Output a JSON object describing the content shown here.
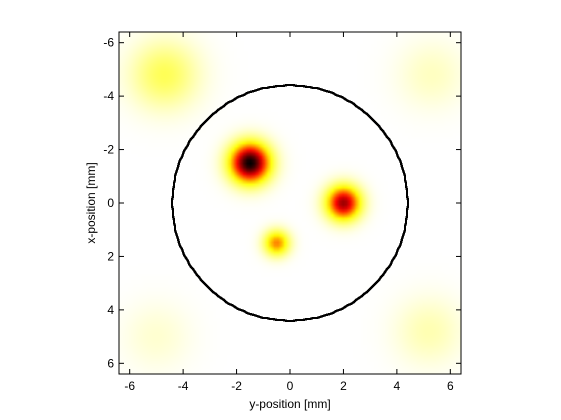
{
  "chart_data": {
    "type": "heatmap",
    "title": "",
    "xlabel": "y-position [mm]",
    "ylabel": "x-position [mm]",
    "xlim": [
      -6.4,
      6.4
    ],
    "ylim": [
      -6.4,
      6.4
    ],
    "y_axis_reversed": true,
    "xticks": [
      -6,
      -4,
      -2,
      0,
      2,
      4,
      6
    ],
    "yticks": [
      -6,
      -4,
      -2,
      0,
      2,
      4,
      6
    ],
    "xtick_labels": [
      "-6",
      "-4",
      "-2",
      "0",
      "2",
      "4",
      "6"
    ],
    "ytick_labels": [
      "-6",
      "-4",
      "-2",
      "0",
      "2",
      "4",
      "6"
    ],
    "grid": false,
    "colormap": "hot (reversed)",
    "colormap_stops": [
      "#ffffff",
      "#ffff00",
      "#ff0000",
      "#000000"
    ],
    "boundary_circle": {
      "center_y": 0,
      "center_x": 0,
      "radius": 4.4,
      "color": "#000000"
    },
    "hotspots": [
      {
        "y": -1.5,
        "x": -1.5,
        "peak": 1.0,
        "radius": 0.7
      },
      {
        "y": 2.0,
        "x": 0.0,
        "peak": 0.8,
        "radius": 0.6
      },
      {
        "y": -0.5,
        "x": 1.5,
        "peak": 0.5,
        "radius": 0.45
      }
    ],
    "corner_artifacts": [
      {
        "y": -4.7,
        "x": -4.8,
        "intensity": 0.22,
        "location": "top-left"
      },
      {
        "y": 5.3,
        "x": -4.8,
        "intensity": 0.08,
        "location": "top-right"
      },
      {
        "y": -5.0,
        "x": 5.0,
        "intensity": 0.06,
        "location": "bottom-left"
      },
      {
        "y": 5.2,
        "x": 4.8,
        "intensity": 0.1,
        "location": "bottom-right"
      }
    ]
  }
}
